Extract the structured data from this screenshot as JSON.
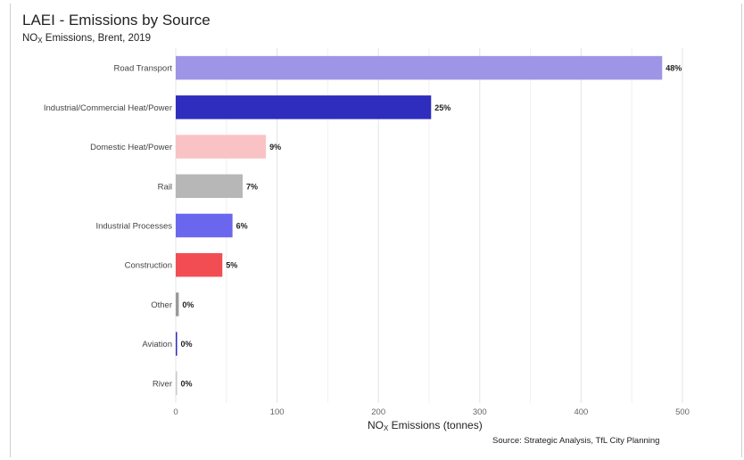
{
  "chart_data": {
    "type": "bar",
    "orientation": "horizontal",
    "title": "LAEI - Emissions by Source",
    "subtitle_prefix": "NO",
    "subtitle_sub": "X",
    "subtitle_suffix": " Emissions, Brent, 2019",
    "xlabel_prefix": "NO",
    "xlabel_sub": "X",
    "xlabel_suffix": " Emissions (tonnes)",
    "source": "Source: Strategic Analysis, TfL City Planning",
    "xlim": [
      0,
      500
    ],
    "xticks": [
      0,
      100,
      200,
      300,
      400,
      500
    ],
    "grid": true,
    "categories": [
      "Road Transport",
      "Industrial/Commercial Heat/Power",
      "Domestic Heat/Power",
      "Rail",
      "Industrial Processes",
      "Construction",
      "Other",
      "Aviation",
      "River"
    ],
    "values": [
      480,
      252,
      89,
      66,
      56,
      46,
      3,
      1,
      0.5
    ],
    "data_labels": [
      "48%",
      "25%",
      "9%",
      "7%",
      "6%",
      "5%",
      "0%",
      "0%",
      "0%"
    ],
    "colors": [
      "#9e95e6",
      "#2e2dbd",
      "#f9c3c6",
      "#b7b7b7",
      "#6a66ee",
      "#f24d52",
      "#9a9a9a",
      "#2e2dbd",
      "#c8c8c8"
    ]
  }
}
